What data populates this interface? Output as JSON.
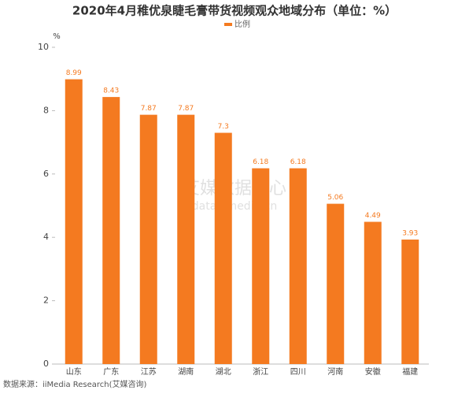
{
  "chart_data": {
    "type": "bar",
    "title": "2020年4月稚优泉睫毛膏带货视频观众地域分布（单位：%）",
    "legend": "比例",
    "y_unit": "%",
    "categories": [
      "山东",
      "广东",
      "江苏",
      "湖南",
      "湖北",
      "浙江",
      "四川",
      "河南",
      "安徽",
      "福建"
    ],
    "values": [
      8.99,
      8.43,
      7.87,
      7.87,
      7.3,
      6.18,
      6.18,
      5.06,
      4.49,
      3.93
    ],
    "color": "#f47a20",
    "ylim": [
      0,
      10
    ],
    "yticks": [
      0,
      2,
      4,
      6,
      8,
      10
    ],
    "grid": false,
    "source": "数据来源：iiMedia Research(艾媒咨询)",
    "watermark": [
      "艾媒数据中心",
      "data.iimedia.cn"
    ]
  }
}
